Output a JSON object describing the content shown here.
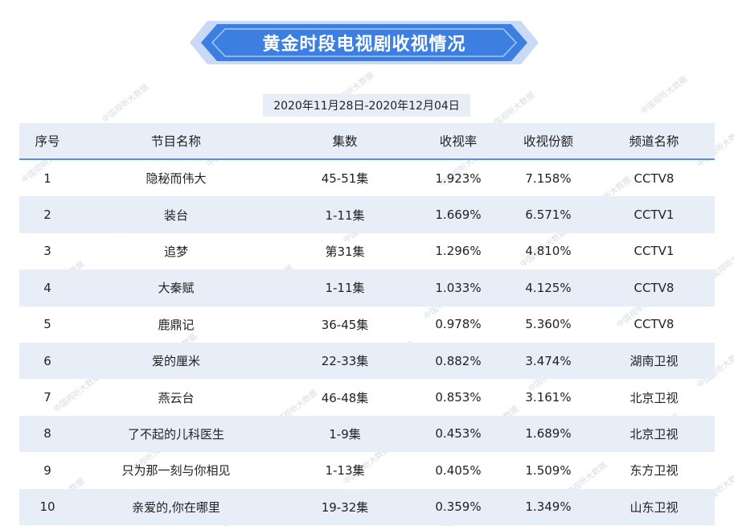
{
  "header": {
    "title": "黄金时段电视剧收视情况",
    "date_range": "2020年11月28日-2020年12月04日"
  },
  "watermark": "中国视听大数据",
  "colors": {
    "banner_fill": "#3d7fe0",
    "banner_edge": "#c8daf6",
    "row_shade": "#e7eef8",
    "head_rule": "#5b8fd8"
  },
  "table": {
    "columns": [
      "序号",
      "节目名称",
      "集数",
      "收视率",
      "收视份额",
      "频道名称"
    ],
    "rows": [
      [
        "1",
        "隐秘而伟大",
        "45-51集",
        "1.923%",
        "7.158%",
        "CCTV8"
      ],
      [
        "2",
        "装台",
        "1-11集",
        "1.669%",
        "6.571%",
        "CCTV1"
      ],
      [
        "3",
        "追梦",
        "第31集",
        "1.296%",
        "4.810%",
        "CCTV1"
      ],
      [
        "4",
        "大秦赋",
        "1-11集",
        "1.033%",
        "4.125%",
        "CCTV8"
      ],
      [
        "5",
        "鹿鼎记",
        "36-45集",
        "0.978%",
        "5.360%",
        "CCTV8"
      ],
      [
        "6",
        "爱的厘米",
        "22-33集",
        "0.882%",
        "3.474%",
        "湖南卫视"
      ],
      [
        "7",
        "燕云台",
        "46-48集",
        "0.853%",
        "3.161%",
        "北京卫视"
      ],
      [
        "8",
        "了不起的儿科医生",
        "1-9集",
        "0.453%",
        "1.689%",
        "北京卫视"
      ],
      [
        "9",
        "只为那一刻与你相见",
        "1-13集",
        "0.405%",
        "1.509%",
        "东方卫视"
      ],
      [
        "10",
        "亲爱的,你在哪里",
        "19-32集",
        "0.359%",
        "1.349%",
        "山东卫视"
      ]
    ]
  }
}
